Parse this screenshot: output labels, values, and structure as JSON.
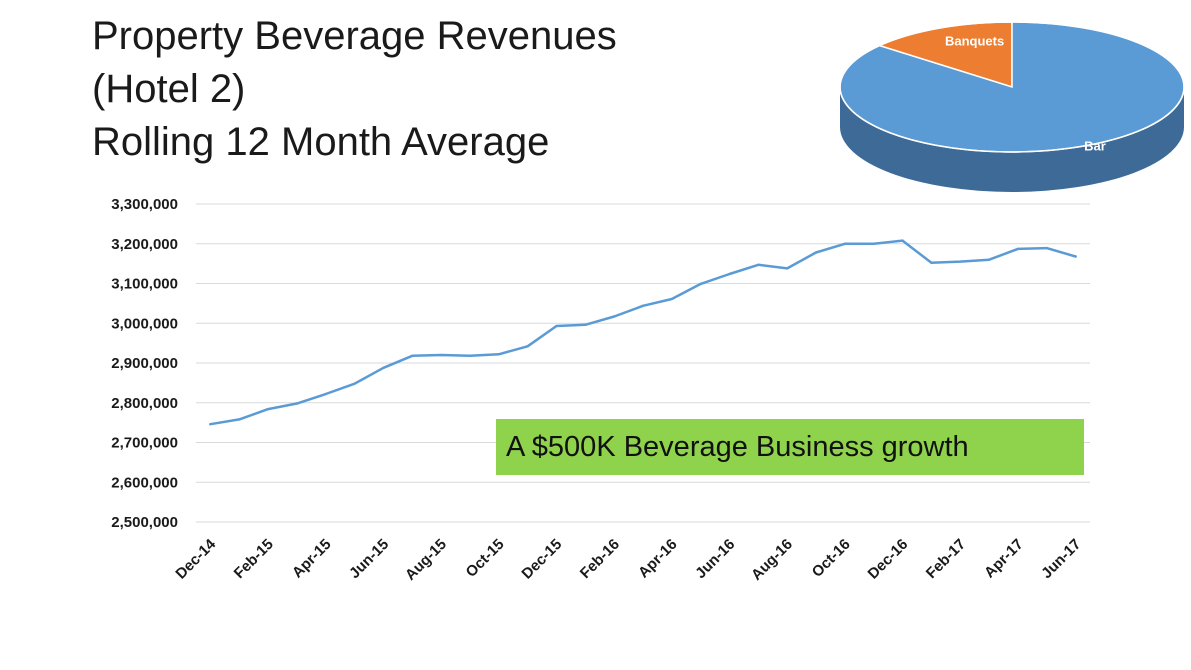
{
  "title_lines": [
    "Property Beverage Revenues",
    "(Hotel 2)",
    "Rolling 12 Month Average"
  ],
  "callout": "A $500K Beverage Business growth",
  "colors": {
    "line": "#5b9bd5",
    "grid": "#d9d9d9",
    "callout_bg": "#8fd24b",
    "pie_bar": "#5b9bd5",
    "pie_bar_side": "#3d6a97",
    "pie_banquets": "#ed7d31",
    "pie_banquets_side": "#b85d20"
  },
  "chart_data": [
    {
      "type": "line",
      "title": "",
      "xlabel": "",
      "ylabel": "",
      "ylim": [
        2500000,
        3300000
      ],
      "y_ticks": [
        "2,500,000",
        "2,600,000",
        "2,700,000",
        "2,800,000",
        "2,900,000",
        "3,000,000",
        "3,100,000",
        "3,200,000",
        "3,300,000"
      ],
      "y_tick_values": [
        2500000,
        2600000,
        2700000,
        2800000,
        2900000,
        3000000,
        3100000,
        3200000,
        3300000
      ],
      "x_tick_labels": [
        "Dec-14",
        "Feb-15",
        "Apr-15",
        "Jun-15",
        "Aug-15",
        "Oct-15",
        "Dec-15",
        "Feb-16",
        "Apr-16",
        "Jun-16",
        "Aug-16",
        "Oct-16",
        "Dec-16",
        "Feb-17",
        "Apr-17",
        "Jun-17"
      ],
      "grid": true,
      "legend": "none",
      "x": [
        "Dec-14",
        "Jan-15",
        "Feb-15",
        "Mar-15",
        "Apr-15",
        "May-15",
        "Jun-15",
        "Jul-15",
        "Aug-15",
        "Sep-15",
        "Oct-15",
        "Nov-15",
        "Dec-15",
        "Jan-16",
        "Feb-16",
        "Mar-16",
        "Apr-16",
        "May-16",
        "Jun-16",
        "Jul-16",
        "Aug-16",
        "Sep-16",
        "Oct-16",
        "Nov-16",
        "Dec-16",
        "Jan-17",
        "Feb-17",
        "Mar-17",
        "Apr-17",
        "May-17",
        "Jun-17"
      ],
      "series": [
        {
          "values": [
            2746000,
            2758000,
            2784000,
            2798000,
            2822000,
            2848000,
            2888000,
            2918000,
            2920000,
            2918000,
            2922000,
            2942000,
            2993000,
            2996000,
            3017000,
            3044000,
            3061000,
            3099000,
            3124000,
            3147000,
            3138000,
            3178000,
            3200000,
            3200000,
            3208000,
            3152000,
            3155000,
            3160000,
            3187000,
            3189000,
            3168000
          ]
        }
      ]
    },
    {
      "type": "pie",
      "title": "",
      "legend": "none",
      "categories": [
        "Banquets",
        "Bar"
      ],
      "values": [
        14,
        86
      ]
    }
  ]
}
